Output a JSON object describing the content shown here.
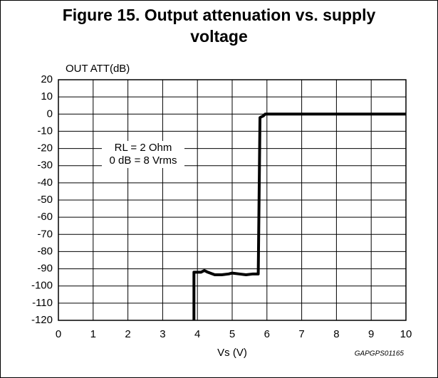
{
  "chart_data": {
    "type": "line",
    "title": "Figure 15. Output attenuation vs. supply voltage",
    "y_label": "OUT ATT(dB)",
    "x_label": "Vs (V)",
    "code": "GAPGPS01165",
    "annotations": [
      "RL = 2 Ohm",
      "0 dB = 8 Vrms"
    ],
    "x": [
      3.9,
      3.9,
      4.1,
      4.2,
      4.3,
      4.5,
      4.7,
      4.9,
      5.0,
      5.2,
      5.4,
      5.6,
      5.75,
      5.8,
      5.9,
      5.95,
      10
    ],
    "series": [
      {
        "color": "#000000",
        "values": [
          -120,
          -92,
          -92,
          -91,
          -92,
          -93.5,
          -93.5,
          -93,
          -92.5,
          -93,
          -93.5,
          -93,
          -93,
          -2,
          -1,
          0,
          0
        ]
      }
    ],
    "xlim": [
      0,
      10
    ],
    "xticks": [
      0,
      1,
      2,
      3,
      4,
      5,
      6,
      7,
      8,
      9,
      10
    ],
    "ylim": [
      -120,
      20
    ],
    "yticks": [
      20,
      10,
      0,
      -10,
      -20,
      -30,
      -40,
      -50,
      -60,
      -70,
      -80,
      -90,
      -100,
      -110,
      -120
    ],
    "grid": true
  }
}
